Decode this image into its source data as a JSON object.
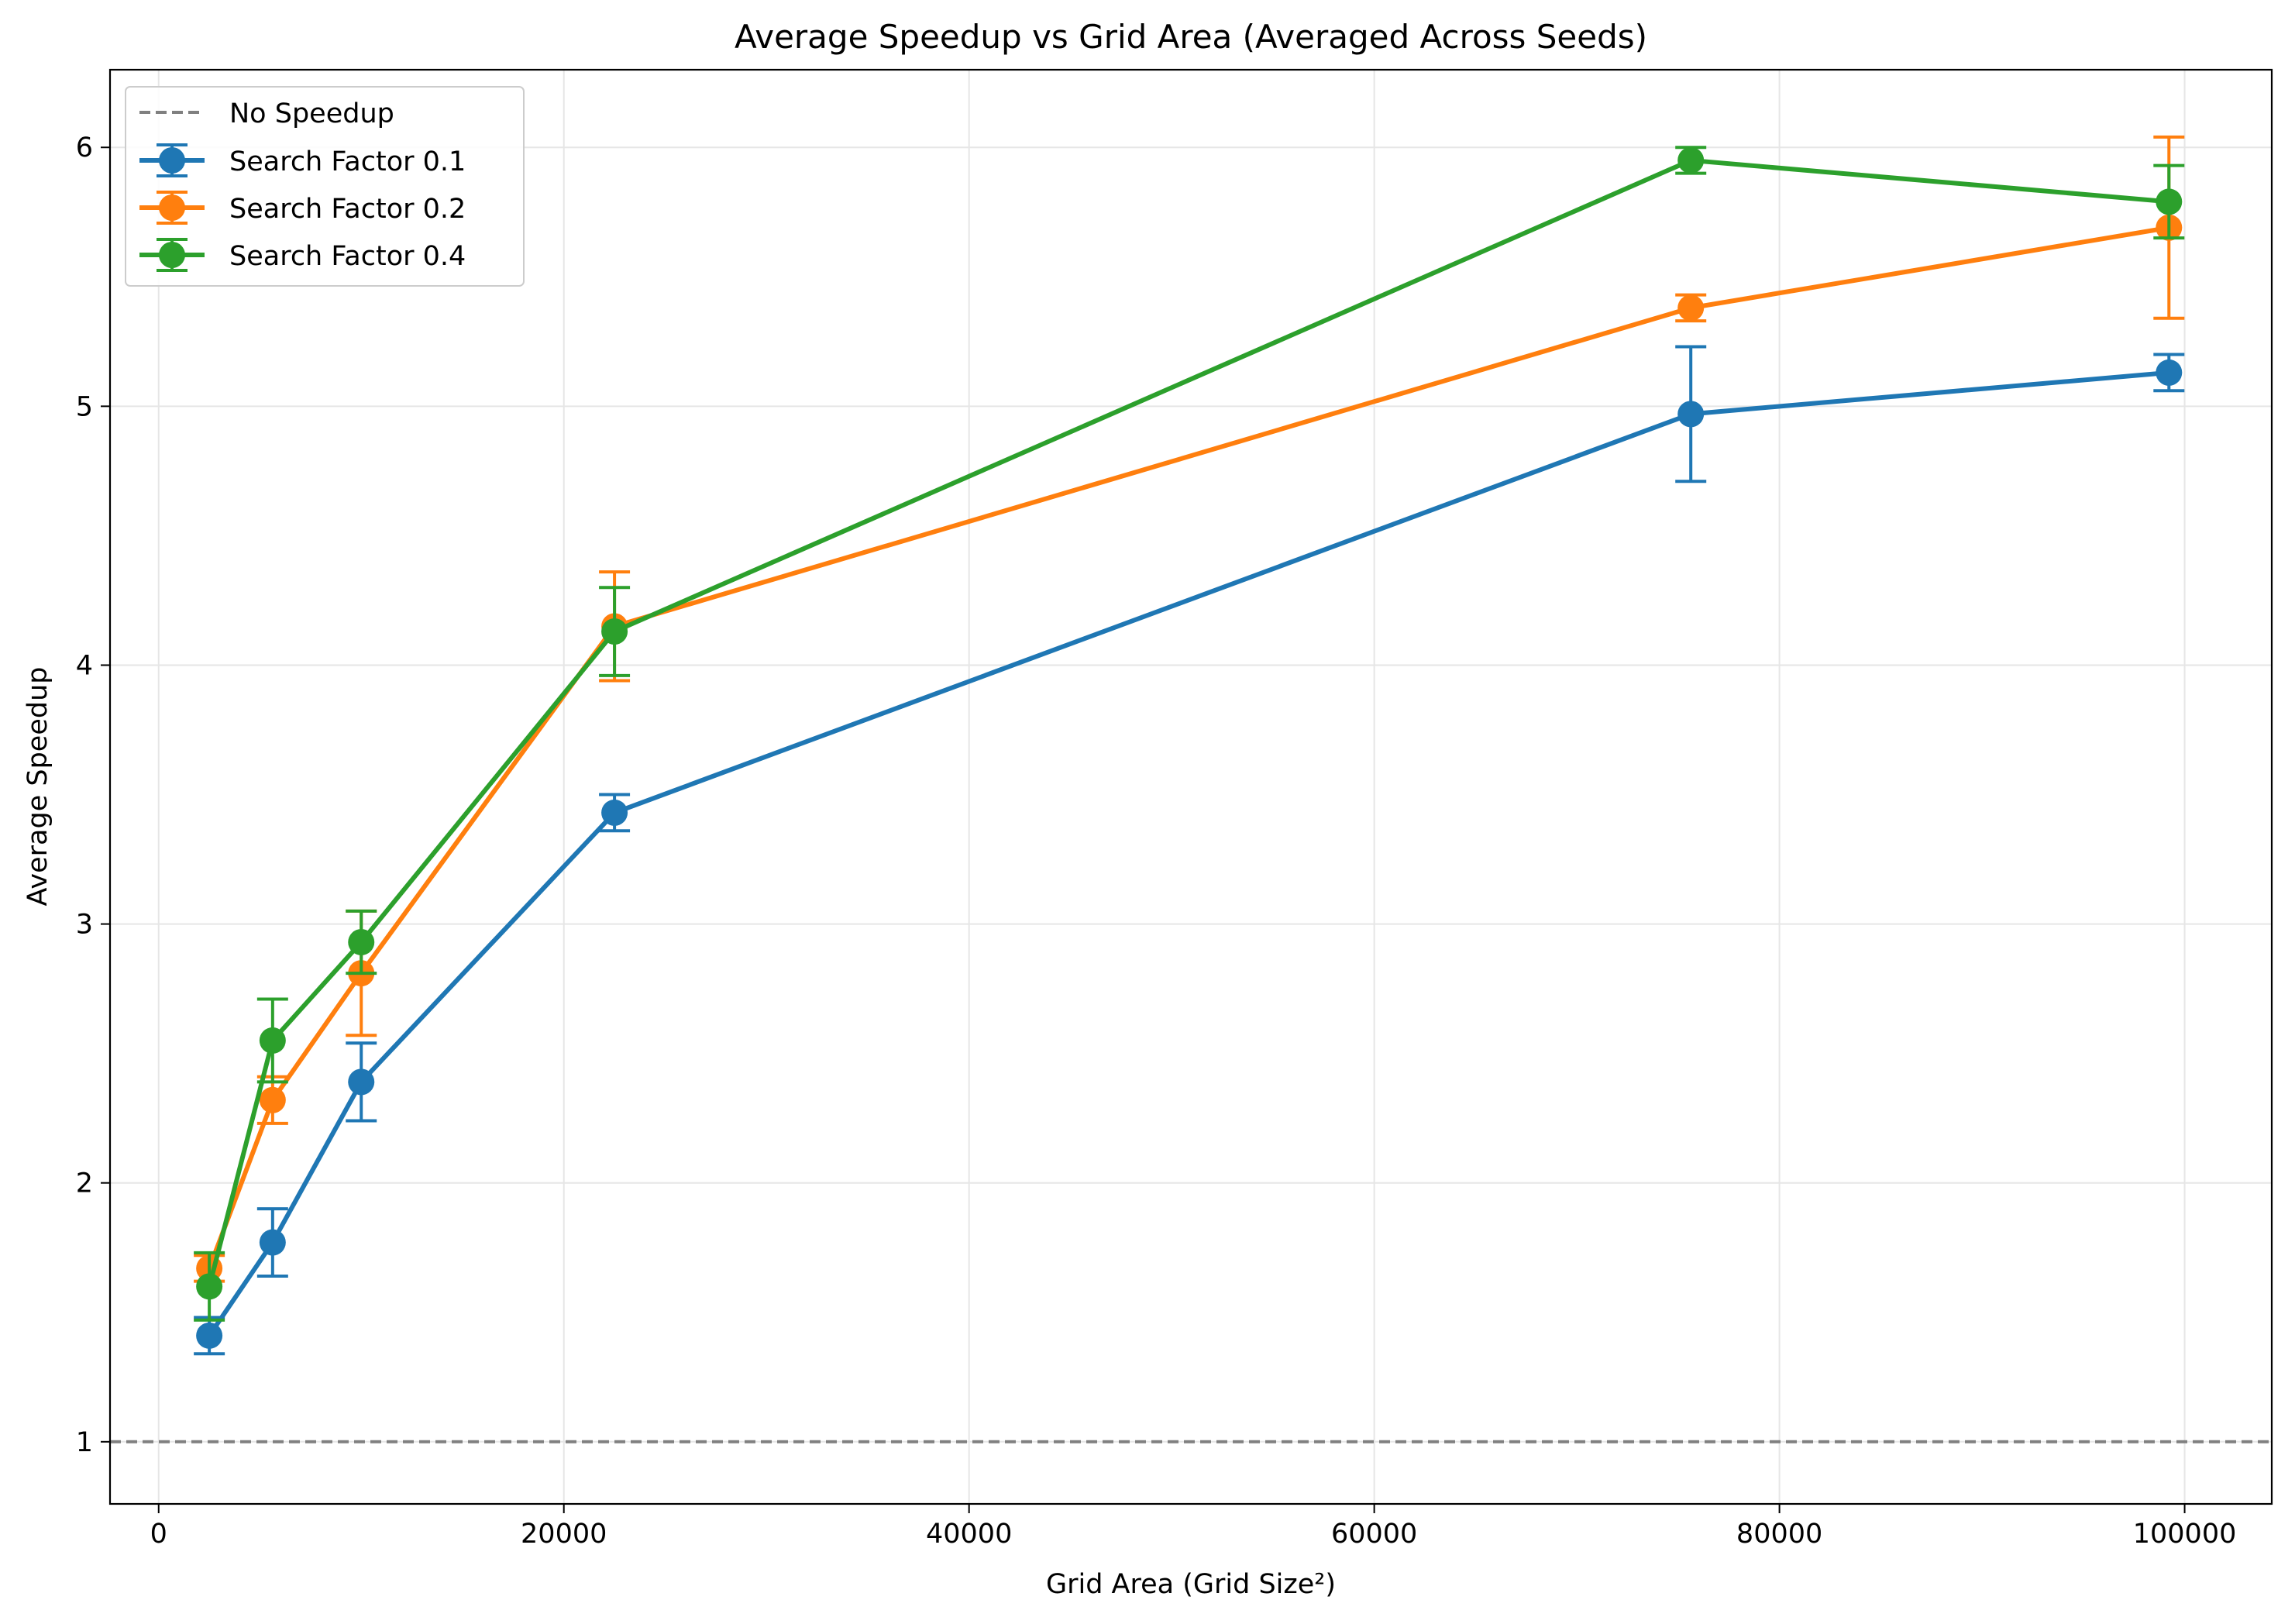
{
  "chart_data": {
    "type": "line",
    "title": "Average Speedup vs Grid Area (Averaged Across Seeds)",
    "xlabel": "Grid Area (Grid Size²)",
    "ylabel": "Average Speedup",
    "xlim": [
      -2400,
      104300
    ],
    "ylim": [
      0.76,
      6.3
    ],
    "x_ticks": [
      0,
      20000,
      40000,
      60000,
      80000,
      100000
    ],
    "y_ticks": [
      1,
      2,
      3,
      4,
      5,
      6
    ],
    "grid": true,
    "legend_position": "upper left",
    "reference_line": {
      "name": "No Speedup",
      "y": 1,
      "color": "#808080",
      "style": "dashed"
    },
    "x": [
      2500,
      5625,
      10000,
      22500,
      75625,
      99225
    ],
    "series": [
      {
        "name": "Search Factor 0.1",
        "color": "#1f77b4",
        "values": [
          1.41,
          1.77,
          2.39,
          3.43,
          4.97,
          5.13
        ],
        "errors": [
          0.07,
          0.13,
          0.15,
          0.07,
          0.26,
          0.07
        ]
      },
      {
        "name": "Search Factor 0.2",
        "color": "#ff7f0e",
        "values": [
          1.67,
          2.32,
          2.81,
          4.15,
          5.38,
          5.69
        ],
        "errors": [
          0.05,
          0.09,
          0.24,
          0.21,
          0.05,
          0.35
        ]
      },
      {
        "name": "Search Factor 0.4",
        "color": "#2ca02c",
        "values": [
          1.6,
          2.55,
          2.93,
          4.13,
          5.95,
          5.79
        ],
        "errors": [
          0.13,
          0.16,
          0.12,
          0.17,
          0.05,
          0.14
        ]
      }
    ]
  }
}
